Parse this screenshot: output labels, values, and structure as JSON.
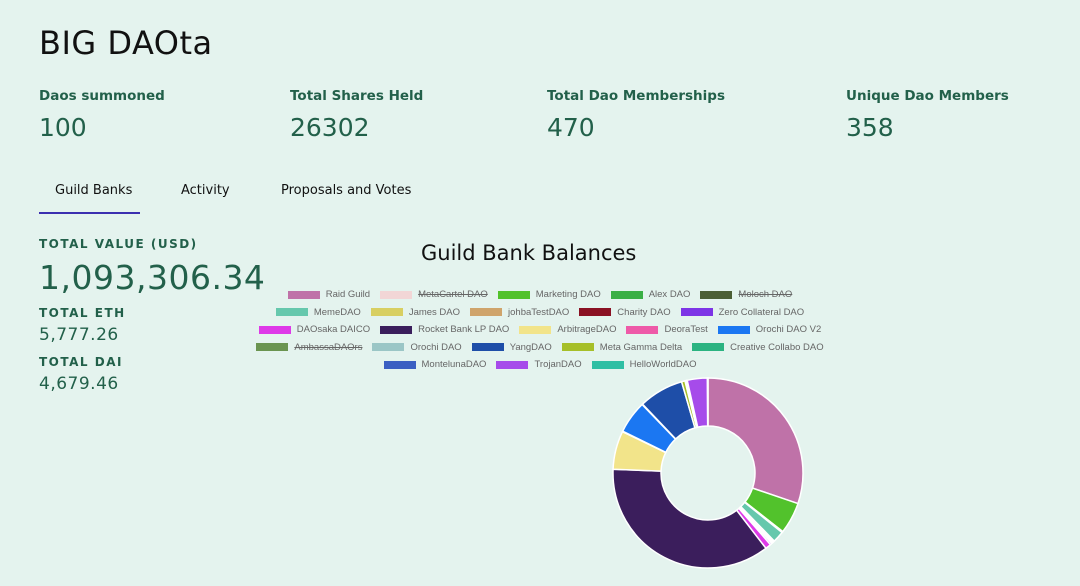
{
  "app": {
    "title": "BIG DAOta"
  },
  "stats": [
    {
      "label": "Daos summoned",
      "value": "100"
    },
    {
      "label": "Total Shares Held",
      "value": "26302"
    },
    {
      "label": "Total Dao Memberships",
      "value": "470"
    },
    {
      "label": "Unique Dao Members",
      "value": "358"
    }
  ],
  "tabs": [
    {
      "label": "Guild Banks",
      "active": true
    },
    {
      "label": "Activity",
      "active": false
    },
    {
      "label": "Proposals and Votes",
      "active": false
    }
  ],
  "totals": {
    "usd_label": "TOTAL VALUE (USD)",
    "usd_value": "1,093,306.34",
    "eth_label": "TOTAL ETH",
    "eth_value": "5,777.26",
    "dai_label": "TOTAL DAI",
    "dai_value": "4,679.46"
  },
  "chart_data": {
    "type": "pie",
    "variant": "donut",
    "title": "Guild Bank Balances",
    "legend_position": "top",
    "legend_rows": [
      [
        "Raid Guild",
        "MetaCartel DAO",
        "Marketing DAO",
        "Alex DAO",
        "Moloch DAO"
      ],
      [
        "MemeDAO",
        "James DAO",
        "johbaTestDAO",
        "Charity DAO",
        "Zero Collateral DAO"
      ],
      [
        "DAOsaka DAICO",
        "Rocket Bank LP DAO",
        "ArbitrageDAO",
        "DeoraTest",
        "Orochi DAO V2"
      ],
      [
        "AmbassaDAOrs",
        "Orochi DAO",
        "YangDAO",
        "Meta Gamma Delta",
        "Creative Collabo DAO"
      ],
      [
        "MontelunaDAO",
        "TrojanDAO",
        "HelloWorldDAO"
      ]
    ],
    "series": [
      {
        "name": "Raid Guild",
        "color": "#bf72a8",
        "value": 31.0,
        "hidden": false
      },
      {
        "name": "MetaCartel DAO",
        "color": "#f2d6d6",
        "value": 0,
        "hidden": true
      },
      {
        "name": "Marketing DAO",
        "color": "#52c22c",
        "value": 5.5,
        "hidden": false
      },
      {
        "name": "Alex DAO",
        "color": "#3aaf45",
        "value": 0.2,
        "hidden": false
      },
      {
        "name": "Moloch DAO",
        "color": "#4b5e35",
        "value": 0,
        "hidden": true
      },
      {
        "name": "MemeDAO",
        "color": "#66c8ad",
        "value": 2.0,
        "hidden": false
      },
      {
        "name": "James DAO",
        "color": "#d8cf62",
        "value": 0.2,
        "hidden": false
      },
      {
        "name": "johbaTestDAO",
        "color": "#cfa46b",
        "value": 0.2,
        "hidden": false
      },
      {
        "name": "Charity DAO",
        "color": "#8a1123",
        "value": 0.2,
        "hidden": false
      },
      {
        "name": "Zero Collateral DAO",
        "color": "#7d35e6",
        "value": 0.3,
        "hidden": false
      },
      {
        "name": "DAOsaka DAICO",
        "color": "#de3ae8",
        "value": 1.0,
        "hidden": false
      },
      {
        "name": "Rocket Bank LP DAO",
        "color": "#3b1e5c",
        "value": 37.0,
        "hidden": false
      },
      {
        "name": "ArbitrageDAO",
        "color": "#f2e48a",
        "value": 6.7,
        "hidden": false
      },
      {
        "name": "DeoraTest",
        "color": "#ee5aa8",
        "value": 0.1,
        "hidden": false
      },
      {
        "name": "Orochi DAO V2",
        "color": "#1b77f2",
        "value": 5.7,
        "hidden": false
      },
      {
        "name": "AmbassaDAOrs",
        "color": "#6a9450",
        "value": 0,
        "hidden": true
      },
      {
        "name": "Orochi DAO",
        "color": "#9bc6c6",
        "value": 0.1,
        "hidden": false
      },
      {
        "name": "YangDAO",
        "color": "#1e4ea8",
        "value": 7.8,
        "hidden": false
      },
      {
        "name": "Meta Gamma Delta",
        "color": "#a6bf28",
        "value": 0.6,
        "hidden": false
      },
      {
        "name": "Creative Collabo DAO",
        "color": "#2bb381",
        "value": 0.2,
        "hidden": false
      },
      {
        "name": "MontelunaDAO",
        "color": "#3b5fc2",
        "value": 0.2,
        "hidden": false
      },
      {
        "name": "TrojanDAO",
        "color": "#a64bea",
        "value": 3.5,
        "hidden": false
      },
      {
        "name": "HelloWorldDAO",
        "color": "#2fbfa4",
        "value": 0.1,
        "hidden": false
      }
    ]
  }
}
